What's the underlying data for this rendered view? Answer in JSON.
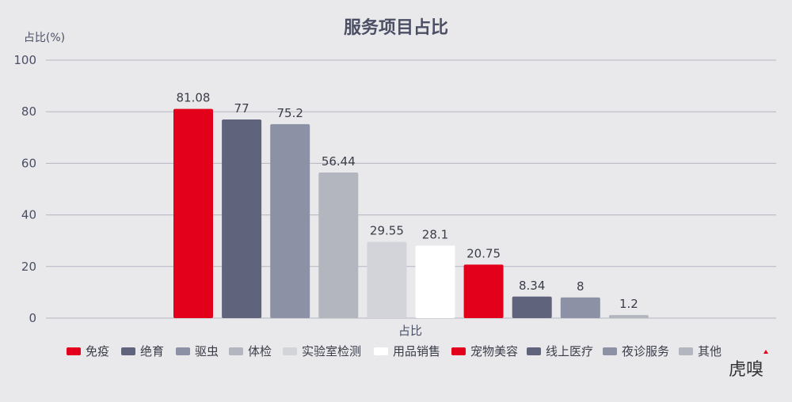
{
  "chart_data": {
    "type": "bar",
    "title": "服务项目占比",
    "ylabel": "占比(%)",
    "xlabel": "占比",
    "ylim": [
      0,
      100
    ],
    "yticks": [
      0,
      20,
      40,
      60,
      80,
      100
    ],
    "grid": true,
    "legend_position": "bottom",
    "categories": [
      "免疫",
      "绝育",
      "驱虫",
      "体检",
      "实验室检测",
      "用品销售",
      "宠物美容",
      "线上医疗",
      "夜诊服务",
      "其他"
    ],
    "values": [
      81.08,
      77,
      75.2,
      56.44,
      29.55,
      28.1,
      20.75,
      8.34,
      8,
      1.2
    ],
    "data_labels": [
      "81.08",
      "77",
      "75.2",
      "56.44",
      "29.55",
      "28.1",
      "20.75",
      "8.34",
      "8",
      "1.2"
    ],
    "colors": [
      "#e2001a",
      "#5f637c",
      "#8d91a5",
      "#b3b5bf",
      "#d3d4da",
      "#ffffff",
      "#e2001a",
      "#5f637c",
      "#8d91a5",
      "#b3b5bf"
    ]
  },
  "logo": {
    "text": "虎嗅",
    "accent": "#e2001a"
  }
}
